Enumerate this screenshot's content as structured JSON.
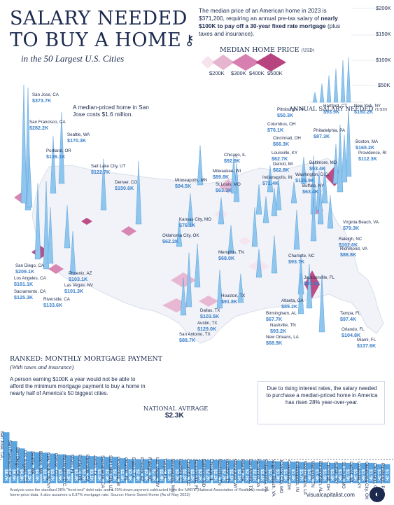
{
  "header": {
    "title_line1": "SALARY NEEDED",
    "title_line2": "TO BUY A HOME",
    "subtitle": "in the 50 Largest U.S. Cities",
    "intro_part1": "The median price of an American home in 2023 is $371,200, requiring an annual pre-tax salary of ",
    "intro_bold": "nearly $100K to pay off a 30-year fixed rate mortgage",
    "intro_part2": " (plus taxes and insurance)."
  },
  "legend": {
    "title": "MEDIAN HOME PRICE",
    "unit": "(USD)",
    "labels": [
      "$200K",
      "$300K",
      "$400K",
      "$500K"
    ],
    "colors": [
      "#f6e3ee",
      "#e7b4d0",
      "#d67fb0",
      "#b8447f"
    ]
  },
  "salary_scale": {
    "title": "ANNUAL SALARY NEEDED",
    "unit": "(USD)",
    "ticks": [
      {
        "label": "$200K",
        "value": 200
      },
      {
        "label": "$150K",
        "value": 150
      },
      {
        "label": "$100K",
        "value": 100
      },
      {
        "label": "$50K",
        "value": 50
      }
    ]
  },
  "callout": "A median-priced home in San Jose costs $1.6 million.",
  "cities": [
    {
      "name": "San Jose, CA",
      "value": "$373.7K"
    },
    {
      "name": "San Francisco, CA",
      "value": "$282.2K"
    },
    {
      "name": "Seattle, WA",
      "value": "$170.3K"
    },
    {
      "name": "Portland, OR",
      "value": "$136.1K"
    },
    {
      "name": "Salt Lake City, UT",
      "value": "$122.7K"
    },
    {
      "name": "Denver, CO",
      "value": "$150.6K"
    },
    {
      "name": "Minneapolis, MN",
      "value": "$94.5K"
    },
    {
      "name": "Chicago, IL",
      "value": "$92.9K"
    },
    {
      "name": "Milwaukee, WI",
      "value": "$89.8K"
    },
    {
      "name": "St Louis, MO",
      "value": "$63.3K"
    },
    {
      "name": "Pittsburgh, PA",
      "value": "$50.3K"
    },
    {
      "name": "Columbus, OH",
      "value": "$76.1K"
    },
    {
      "name": "Cincinnati, OH",
      "value": "$66.3K"
    },
    {
      "name": "Louisville, KY",
      "value": "$62.7K"
    },
    {
      "name": "Detroit, MI",
      "value": "$62.8K"
    },
    {
      "name": "Indianapolis, IN",
      "value": "$71.4K"
    },
    {
      "name": "Hartford, CT",
      "value": "$93.9K"
    },
    {
      "name": "New York, NY",
      "value": "$160.2K"
    },
    {
      "name": "Boston, MA",
      "value": "$165.2K"
    },
    {
      "name": "Philadelphia, PA",
      "value": "$87.3K"
    },
    {
      "name": "Providence, RI",
      "value": "$112.3K"
    },
    {
      "name": "Baltimore, MD",
      "value": "$93.4K"
    },
    {
      "name": "Washington, D.C.",
      "value": "$139.9K"
    },
    {
      "name": "Buffalo, NY",
      "value": "$63.4K"
    },
    {
      "name": "Kansas City, MO",
      "value": "$76.1K"
    },
    {
      "name": "Oklahoma City, OK",
      "value": "$62.2K"
    },
    {
      "name": "Virginia Beach, VA",
      "value": "$79.3K"
    },
    {
      "name": "Memphis, TN",
      "value": "$68.0K"
    },
    {
      "name": "Charlotte, NC",
      "value": "$93.7K"
    },
    {
      "name": "Raleigh, NC",
      "value": "$102.6K"
    },
    {
      "name": "Richmond, VA",
      "value": "$88.8K"
    },
    {
      "name": "San Diego, CA",
      "value": "$209.1K"
    },
    {
      "name": "Los Angeles, CA",
      "value": "$181.1K"
    },
    {
      "name": "Sacramento, CA",
      "value": "$125.3K"
    },
    {
      "name": "Riverside, CA",
      "value": "$133.6K"
    },
    {
      "name": "Phoenix, AZ",
      "value": "$103.1K"
    },
    {
      "name": "Las Vegas, NV",
      "value": "$101.3K"
    },
    {
      "name": "Houston, TX",
      "value": "$91.8K"
    },
    {
      "name": "Dallas, TX",
      "value": "$103.5K"
    },
    {
      "name": "Austin, TX",
      "value": "$129.0K"
    },
    {
      "name": "San Antonio, TX",
      "value": "$88.7K"
    },
    {
      "name": "Atlanta, GA",
      "value": "$89.2K"
    },
    {
      "name": "Birmingham, AL",
      "value": "$67.7K"
    },
    {
      "name": "Nashville, TN",
      "value": "$93.2K"
    },
    {
      "name": "New Orleans, LA",
      "value": "$68.9K"
    },
    {
      "name": "Jacksonville, FL",
      "value": "$93.4K"
    },
    {
      "name": "Tampa, FL",
      "value": "$97.4K"
    },
    {
      "name": "Orlando, FL",
      "value": "$104.8K"
    },
    {
      "name": "Miami, FL",
      "value": "$137.6K"
    }
  ],
  "ranked": {
    "title": "RANKED: MONTHLY MORTGAGE PAYMENT",
    "subtitle": "(With taxes and insurance)",
    "body": "A person earning $100K a year would not be able to afford the minimum mortgage payment to buy a home in nearly half of America's 50 biggest cities.",
    "national_label": "NATIONAL AVERAGE",
    "national_value": "$2.3K"
  },
  "note": "Due to rising interest rates, the salary needed to purchase a median-priced home in America has risen 28% year-over-year.",
  "footer": {
    "source": "Analysis uses the standard 28% \"front-end\" debt ratio and a 20% down payment subtracted from the NAR's (National Association of Realtors) median-home-price data. It also assumes a 6.37% mortgage rate. Source: Home Sweet Home (As of May 2023)",
    "brand": "visualcapitalist.com"
  },
  "chart_data": [
    {
      "type": "bar",
      "title": "RANKED: MONTHLY MORTGAGE PAYMENT",
      "categories": [
        "San Jose, CA",
        "San Francisco, CA",
        "San Diego, CA",
        "Los Angeles, CA",
        "Seattle, WA",
        "Boston, MA",
        "New York City, NY",
        "Denver, CO",
        "Washington D.C.",
        "Miami, FL",
        "Portland, OR",
        "Riverside, CA",
        "Austin, TX",
        "Sacramento, CA",
        "Salt Lake City, UT",
        "Providence, RI",
        "Orlando, FL",
        "Dallas, TX",
        "Phoenix, AZ",
        "Raleigh, NC",
        "Las Vegas, NV",
        "Tampa, FL",
        "Minneapolis, MN",
        "Hartford, CT",
        "Charlotte, NC",
        "Jacksonville, FL",
        "Baltimore, MD",
        "Chicago, IL",
        "Nashville, TN",
        "Houston, TX",
        "Milwaukee, WI",
        "Atlanta, GA",
        "San Antonio, TX",
        "Richmond, VA",
        "Philadelphia, PA",
        "Virginia Beach, VA",
        "Kansas City, MO",
        "Columbus, OH",
        "Indianapolis, IN",
        "New Orleans, LA",
        "Memphis, TN",
        "Birmingham, AL",
        "Cincinnati, OH",
        "Buffalo, NY",
        "St. Louis, MO",
        "Detroit, MI",
        "Louisville, KY",
        "Oklahoma City, OK",
        "Cleveland, OH",
        "Pittsburgh, PA"
      ],
      "values": [
        8.7,
        6.6,
        4.9,
        4.2,
        4.0,
        3.9,
        3.7,
        3.5,
        3.3,
        3.2,
        3.2,
        3.1,
        3.0,
        2.9,
        2.9,
        2.6,
        2.4,
        2.4,
        2.4,
        2.4,
        2.4,
        2.3,
        2.2,
        2.2,
        2.2,
        2.2,
        2.2,
        2.2,
        2.2,
        2.1,
        2.1,
        2.1,
        2.1,
        2.1,
        2.0,
        1.9,
        1.8,
        1.8,
        1.7,
        1.6,
        1.6,
        1.6,
        1.5,
        1.5,
        1.5,
        1.5,
        1.5,
        1.5,
        1.2,
        1.2
      ],
      "value_labels": [
        "$8.7K",
        "$6.6K",
        "$4.9K",
        "$4.2K",
        "$4.0K",
        "$3.9K",
        "$3.7K",
        "$3.5K",
        "$3.3K",
        "$3.2K",
        "$3.2K",
        "$3.1K",
        "$3.0K",
        "$2.9K",
        "$2.9K",
        "$2.6K",
        "$2.4K",
        "$2.4K",
        "$2.4K",
        "$2.4K",
        "$2.4K",
        "$2.3K",
        "$2.2K",
        "$2.2K",
        "$2.2K",
        "$2.2K",
        "$2.2K",
        "$2.2K",
        "$2.2K",
        "$2.1K",
        "$2.1K",
        "$2.1K",
        "$2.1K",
        "$2.1K",
        "$2.0K",
        "$1.9K",
        "$1.8K",
        "$1.8K",
        "$1.7K",
        "$1.6K",
        "$1.6K",
        "$1.6K",
        "$1.5K",
        "$1.5K",
        "$1.5K",
        "$1.5K",
        "$1.5K",
        "$1.5K",
        "$1.2K",
        "$1.2K"
      ],
      "reference_line": {
        "label": "NATIONAL AVERAGE",
        "value": 2.3
      },
      "color": "#5aa4e0"
    },
    {
      "type": "map",
      "title": "ANNUAL SALARY NEEDED",
      "unit": "USD thousands",
      "cities": [
        "San Jose, CA",
        "San Francisco, CA",
        "Seattle, WA",
        "Portland, OR",
        "Salt Lake City, UT",
        "Denver, CO",
        "Minneapolis, MN",
        "Chicago, IL",
        "Milwaukee, WI",
        "St Louis, MO",
        "Pittsburgh, PA",
        "Columbus, OH",
        "Cincinnati, OH",
        "Louisville, KY",
        "Detroit, MI",
        "Indianapolis, IN",
        "Hartford, CT",
        "New York, NY",
        "Boston, MA",
        "Philadelphia, PA",
        "Providence, RI",
        "Baltimore, MD",
        "Washington, D.C.",
        "Buffalo, NY",
        "Kansas City, MO",
        "Oklahoma City, OK",
        "Virginia Beach, VA",
        "Memphis, TN",
        "Charlotte, NC",
        "Raleigh, NC",
        "Richmond, VA",
        "San Diego, CA",
        "Los Angeles, CA",
        "Sacramento, CA",
        "Riverside, CA",
        "Phoenix, AZ",
        "Las Vegas, NV",
        "Houston, TX",
        "Dallas, TX",
        "Austin, TX",
        "San Antonio, TX",
        "Atlanta, GA",
        "Birmingham, AL",
        "Nashville, TN",
        "New Orleans, LA",
        "Jacksonville, FL",
        "Tampa, FL",
        "Orlando, FL",
        "Miami, FL"
      ],
      "values": [
        373.7,
        282.2,
        170.3,
        136.1,
        122.7,
        150.6,
        94.5,
        92.9,
        89.8,
        63.3,
        50.3,
        76.1,
        66.3,
        62.7,
        62.8,
        71.4,
        93.9,
        160.2,
        165.2,
        87.3,
        112.3,
        93.4,
        139.9,
        63.4,
        76.1,
        62.2,
        79.3,
        68.0,
        93.7,
        102.6,
        88.8,
        209.1,
        181.1,
        125.3,
        133.6,
        103.1,
        101.3,
        91.8,
        103.5,
        129.0,
        88.7,
        89.2,
        67.7,
        93.2,
        68.9,
        93.4,
        97.4,
        104.8,
        137.6
      ]
    }
  ]
}
